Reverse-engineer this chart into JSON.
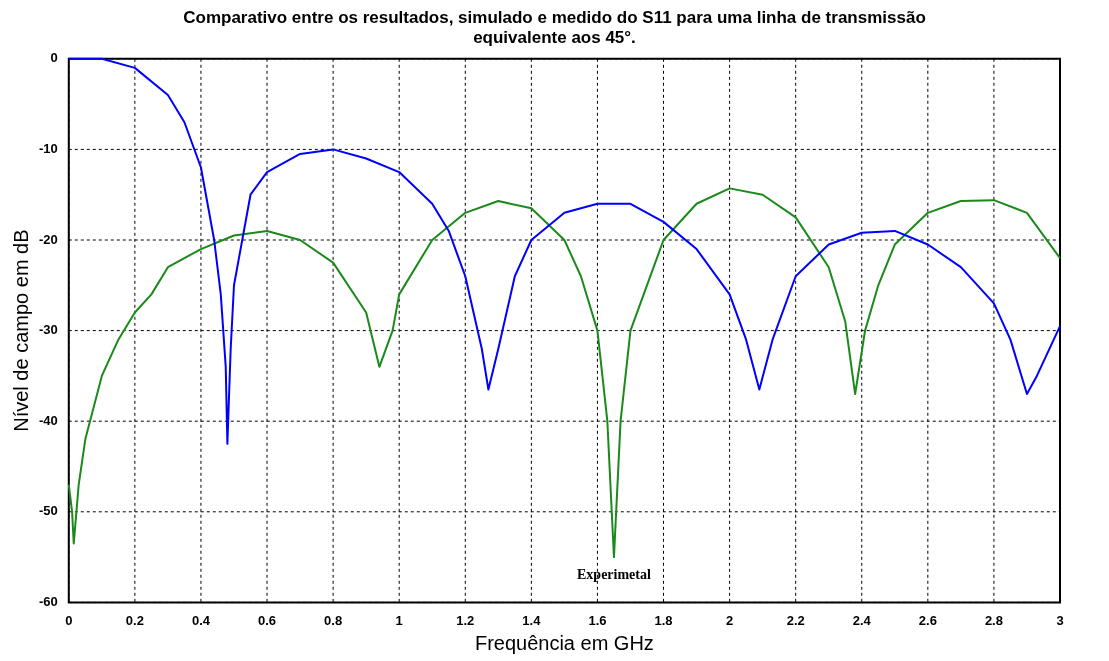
{
  "chart_data": {
    "type": "line",
    "title": "Comparativo entre os resultados, simulado e medido do S11 para uma linha de transmissão equivalente aos 45°.",
    "xlabel": "Frequência em GHz",
    "ylabel": "Nível de campo em dB",
    "xlim": [
      0,
      3
    ],
    "xticks": [
      0,
      0.2,
      0.4,
      0.6,
      0.8,
      1,
      1.2,
      1.4,
      1.6,
      1.8,
      2,
      2.2,
      2.4,
      2.6,
      2.8,
      3
    ],
    "ylim": [
      -60,
      0
    ],
    "yticks": [
      -60,
      -50,
      -40,
      -30,
      -20,
      -10,
      0
    ],
    "grid": true,
    "legend": false,
    "marker": "none",
    "line_style": "solid",
    "annotations": [
      "Experimetal"
    ],
    "series": [
      {
        "color": "#0000ff",
        "x": [
          0,
          0.1,
          0.2,
          0.3,
          0.35,
          0.4,
          0.44,
          0.46,
          0.475,
          0.48,
          0.49,
          0.5,
          0.55,
          0.6,
          0.7,
          0.8,
          0.9,
          1.0,
          1.1,
          1.15,
          1.2,
          1.25,
          1.27,
          1.3,
          1.35,
          1.4,
          1.5,
          1.6,
          1.7,
          1.8,
          1.9,
          2.0,
          2.05,
          2.09,
          2.13,
          2.2,
          2.3,
          2.4,
          2.5,
          2.6,
          2.7,
          2.8,
          2.85,
          2.9,
          2.93,
          3.0
        ],
        "values": [
          0,
          0,
          -1,
          -4,
          -7,
          -12,
          -20,
          -26,
          -34,
          -42.5,
          -32,
          -25,
          -15,
          -12.5,
          -10.5,
          -10,
          -11,
          -12.5,
          -16,
          -19,
          -24,
          -32,
          -36.5,
          -32,
          -24,
          -20,
          -17,
          -16,
          -16,
          -18,
          -21,
          -26,
          -31,
          -36.5,
          -31,
          -24,
          -20.5,
          -19.2,
          -19,
          -20.5,
          -23,
          -27,
          -31,
          -37,
          -35,
          -29.5
        ]
      },
      {
        "color": "#1a8a1a",
        "x": [
          0,
          0.01,
          0.015,
          0.03,
          0.05,
          0.1,
          0.15,
          0.2,
          0.25,
          0.3,
          0.4,
          0.5,
          0.6,
          0.7,
          0.8,
          0.9,
          0.94,
          0.98,
          1.0,
          1.1,
          1.2,
          1.3,
          1.4,
          1.5,
          1.55,
          1.6,
          1.63,
          1.65,
          1.67,
          1.7,
          1.8,
          1.9,
          2.0,
          2.1,
          2.2,
          2.3,
          2.35,
          2.38,
          2.41,
          2.45,
          2.5,
          2.6,
          2.7,
          2.8,
          2.9,
          3.0
        ],
        "values": [
          -47,
          -50,
          -53.5,
          -47,
          -42,
          -35,
          -31,
          -28,
          -26,
          -23,
          -21,
          -19.5,
          -19,
          -20,
          -22.5,
          -28,
          -34,
          -30,
          -26,
          -20,
          -17,
          -15.7,
          -16.5,
          -20,
          -24,
          -30,
          -40,
          -55,
          -40,
          -30,
          -20,
          -16,
          -14.3,
          -15,
          -17.5,
          -23,
          -29,
          -37,
          -30,
          -25,
          -20.5,
          -17,
          -15.7,
          -15.6,
          -17,
          -22
        ]
      }
    ]
  }
}
